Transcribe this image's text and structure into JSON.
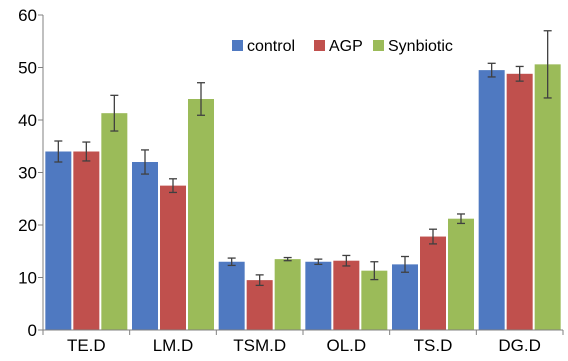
{
  "chart_data": {
    "type": "bar",
    "categories": [
      "TE.D",
      "LM.D",
      "TSM.D",
      "OL.D",
      "TS.D",
      "DG.D"
    ],
    "series": [
      {
        "name": "control",
        "color": "#4f79c1",
        "values": [
          34,
          32,
          13,
          13,
          12.5,
          49.5
        ],
        "errors": [
          2,
          2.3,
          0.7,
          0.5,
          1.5,
          1.3
        ]
      },
      {
        "name": "AGP",
        "color": "#c0504d",
        "values": [
          34,
          27.5,
          9.5,
          13.2,
          17.8,
          48.8
        ],
        "errors": [
          1.8,
          1.3,
          1,
          1,
          1.4,
          1.4
        ]
      },
      {
        "name": "Synbiotic",
        "color": "#9bbb59",
        "values": [
          41.3,
          44,
          13.5,
          11.3,
          21.2,
          50.6
        ],
        "errors": [
          3.4,
          3.1,
          0.3,
          1.7,
          0.9,
          6.4
        ]
      }
    ],
    "ylim": [
      0,
      60
    ],
    "yticks": [
      "0",
      "10",
      "20",
      "30",
      "40",
      "50",
      "60"
    ],
    "xlabel": "",
    "ylabel": "",
    "title": "",
    "grid": false,
    "legend_position": "top-right",
    "error_bar_color": "#404040",
    "axis_color": "#808080"
  }
}
